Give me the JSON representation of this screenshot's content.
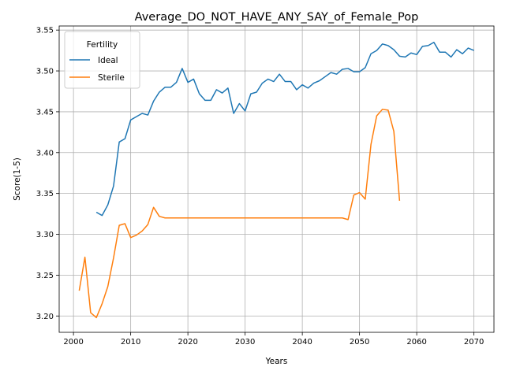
{
  "chart_data": {
    "type": "line",
    "title": "Average_DO_NOT_HAVE_ANY_SAY_of_Female_Pop",
    "xlabel": "Years",
    "ylabel": "Score(1-5)",
    "xlim": [
      1997.5,
      2073.5
    ],
    "ylim": [
      3.18,
      3.555
    ],
    "xticks": [
      2000,
      2010,
      2020,
      2030,
      2040,
      2050,
      2060,
      2070
    ],
    "xtick_labels": [
      "2000",
      "2010",
      "2020",
      "2030",
      "2040",
      "2050",
      "2060",
      "2070"
    ],
    "yticks": [
      3.2,
      3.25,
      3.3,
      3.35,
      3.4,
      3.45,
      3.5,
      3.55
    ],
    "ytick_labels": [
      "3.20",
      "3.25",
      "3.30",
      "3.35",
      "3.40",
      "3.45",
      "3.50",
      "3.55"
    ],
    "grid": true,
    "legend": {
      "title": "Fertility",
      "position": "top-left"
    },
    "series": [
      {
        "name": "Ideal",
        "color": "#1f77b4",
        "x": [
          2004,
          2005,
          2006,
          2007,
          2008,
          2009,
          2010,
          2011,
          2012,
          2013,
          2014,
          2015,
          2016,
          2017,
          2018,
          2019,
          2020,
          2021,
          2022,
          2023,
          2024,
          2025,
          2026,
          2027,
          2028,
          2029,
          2030,
          2031,
          2032,
          2033,
          2034,
          2035,
          2036,
          2037,
          2038,
          2039,
          2040,
          2041,
          2042,
          2043,
          2044,
          2045,
          2046,
          2047,
          2048,
          2049,
          2050,
          2051,
          2052,
          2053,
          2054,
          2055,
          2056,
          2057,
          2058,
          2059,
          2060,
          2061,
          2062,
          2063,
          2064,
          2065,
          2066,
          2067,
          2068,
          2069,
          2070
        ],
        "y": [
          3.327,
          3.323,
          3.336,
          3.359,
          3.413,
          3.417,
          3.44,
          3.444,
          3.448,
          3.446,
          3.463,
          3.474,
          3.48,
          3.48,
          3.486,
          3.503,
          3.486,
          3.49,
          3.472,
          3.464,
          3.464,
          3.477,
          3.473,
          3.479,
          3.448,
          3.46,
          3.451,
          3.472,
          3.474,
          3.485,
          3.49,
          3.487,
          3.496,
          3.487,
          3.487,
          3.477,
          3.483,
          3.479,
          3.485,
          3.488,
          3.493,
          3.498,
          3.496,
          3.502,
          3.503,
          3.499,
          3.499,
          3.504,
          3.521,
          3.525,
          3.533,
          3.531,
          3.526,
          3.518,
          3.517,
          3.522,
          3.52,
          3.53,
          3.531,
          3.535,
          3.523,
          3.523,
          3.517,
          3.526,
          3.521,
          3.528,
          3.525
        ]
      },
      {
        "name": "Sterile",
        "color": "#ff7f0e",
        "x": [
          2001,
          2002,
          2003,
          2004,
          2005,
          2006,
          2007,
          2008,
          2009,
          2010,
          2011,
          2012,
          2013,
          2014,
          2015,
          2016,
          2017,
          2018,
          2019,
          2020,
          2025,
          2030,
          2035,
          2040,
          2045,
          2047,
          2048,
          2049,
          2050,
          2051,
          2052,
          2053,
          2054,
          2055,
          2056,
          2057
        ],
        "y": [
          3.231,
          3.272,
          3.204,
          3.198,
          3.215,
          3.236,
          3.271,
          3.311,
          3.313,
          3.296,
          3.299,
          3.304,
          3.312,
          3.333,
          3.322,
          3.32,
          3.32,
          3.32,
          3.32,
          3.32,
          3.32,
          3.32,
          3.32,
          3.32,
          3.32,
          3.32,
          3.318,
          3.348,
          3.351,
          3.343,
          3.41,
          3.445,
          3.453,
          3.452,
          3.426,
          3.341
        ]
      }
    ]
  }
}
